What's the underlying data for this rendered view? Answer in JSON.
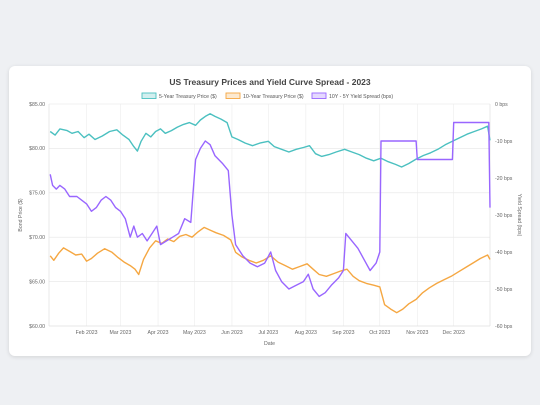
{
  "chart_data": {
    "type": "line",
    "title": "US Treasury Prices and Yield Curve Spread - 2023",
    "xlabel": "Date",
    "ylabel_left": "Bond Price ($)",
    "ylabel_right": "Yield Spread (bps)",
    "x_ticks": [
      "Feb 2023",
      "Mar 2023",
      "Apr 2023",
      "May 2023",
      "Jun 2023",
      "Jul 2023",
      "Aug 2023",
      "Sep 2023",
      "Oct 2023",
      "Nov 2023",
      "Dec 2023"
    ],
    "y_left": {
      "min": 60,
      "max": 85,
      "ticks": [
        "$60.00",
        "$65.00",
        "$70.00",
        "$75.00",
        "$80.00",
        "$85.00"
      ]
    },
    "y_right": {
      "min": -60,
      "max": 0,
      "ticks": [
        "-60 bps",
        "-50 bps",
        "-40 bps",
        "-30 bps",
        "-20 bps",
        "-10 bps",
        "0 bps"
      ]
    },
    "legend_position": "top",
    "grid": true,
    "series": [
      {
        "name": "5-Year Treasury Price ($)",
        "axis": "left",
        "color": "#4bc0c0",
        "points": [
          [
            "2023-01-02",
            81.9
          ],
          [
            "2023-01-06",
            81.5
          ],
          [
            "2023-01-10",
            82.2
          ],
          [
            "2023-01-16",
            82.0
          ],
          [
            "2023-01-20",
            81.7
          ],
          [
            "2023-01-25",
            81.9
          ],
          [
            "2023-01-30",
            81.2
          ],
          [
            "2023-02-03",
            81.6
          ],
          [
            "2023-02-08",
            81.0
          ],
          [
            "2023-02-14",
            81.4
          ],
          [
            "2023-02-20",
            81.9
          ],
          [
            "2023-02-26",
            82.1
          ],
          [
            "2023-03-03",
            81.5
          ],
          [
            "2023-03-08",
            81.0
          ],
          [
            "2023-03-12",
            80.2
          ],
          [
            "2023-03-15",
            79.7
          ],
          [
            "2023-03-18",
            80.8
          ],
          [
            "2023-03-22",
            81.7
          ],
          [
            "2023-03-26",
            81.3
          ],
          [
            "2023-03-30",
            81.9
          ],
          [
            "2023-04-03",
            82.2
          ],
          [
            "2023-04-07",
            81.7
          ],
          [
            "2023-04-12",
            82.0
          ],
          [
            "2023-04-17",
            82.4
          ],
          [
            "2023-04-22",
            82.7
          ],
          [
            "2023-04-27",
            82.9
          ],
          [
            "2023-05-02",
            82.6
          ],
          [
            "2023-05-06",
            83.2
          ],
          [
            "2023-05-10",
            83.6
          ],
          [
            "2023-05-14",
            83.9
          ],
          [
            "2023-05-18",
            83.6
          ],
          [
            "2023-05-23",
            83.3
          ],
          [
            "2023-05-28",
            82.9
          ],
          [
            "2023-06-01",
            81.3
          ],
          [
            "2023-06-06",
            81.0
          ],
          [
            "2023-06-12",
            80.6
          ],
          [
            "2023-06-18",
            80.3
          ],
          [
            "2023-06-24",
            80.6
          ],
          [
            "2023-07-01",
            80.8
          ],
          [
            "2023-07-06",
            80.2
          ],
          [
            "2023-07-12",
            79.9
          ],
          [
            "2023-07-18",
            79.6
          ],
          [
            "2023-07-24",
            79.9
          ],
          [
            "2023-07-30",
            80.1
          ],
          [
            "2023-08-04",
            80.3
          ],
          [
            "2023-08-09",
            79.4
          ],
          [
            "2023-08-14",
            79.1
          ],
          [
            "2023-08-20",
            79.3
          ],
          [
            "2023-08-26",
            79.6
          ],
          [
            "2023-09-02",
            79.9
          ],
          [
            "2023-09-08",
            79.6
          ],
          [
            "2023-09-14",
            79.3
          ],
          [
            "2023-09-20",
            78.9
          ],
          [
            "2023-09-26",
            78.6
          ],
          [
            "2023-10-02",
            78.9
          ],
          [
            "2023-10-08",
            78.5
          ],
          [
            "2023-10-14",
            78.2
          ],
          [
            "2023-10-19",
            77.9
          ],
          [
            "2023-10-25",
            78.3
          ],
          [
            "2023-10-31",
            78.8
          ],
          [
            "2023-11-06",
            79.2
          ],
          [
            "2023-11-12",
            79.5
          ],
          [
            "2023-11-18",
            79.9
          ],
          [
            "2023-11-24",
            80.4
          ],
          [
            "2023-11-30",
            80.8
          ],
          [
            "2023-12-06",
            81.2
          ],
          [
            "2023-12-12",
            81.6
          ],
          [
            "2023-12-18",
            81.9
          ],
          [
            "2023-12-24",
            82.2
          ],
          [
            "2023-12-29",
            82.5
          ],
          [
            "2023-12-31",
            80.9
          ]
        ]
      },
      {
        "name": "10-Year Treasury Price ($)",
        "axis": "left",
        "color": "#f5a742",
        "points": [
          [
            "2023-01-02",
            67.9
          ],
          [
            "2023-01-05",
            67.4
          ],
          [
            "2023-01-09",
            68.2
          ],
          [
            "2023-01-13",
            68.8
          ],
          [
            "2023-01-18",
            68.4
          ],
          [
            "2023-01-23",
            68.0
          ],
          [
            "2023-01-28",
            68.1
          ],
          [
            "2023-02-01",
            67.3
          ],
          [
            "2023-02-05",
            67.6
          ],
          [
            "2023-02-10",
            68.2
          ],
          [
            "2023-02-16",
            68.7
          ],
          [
            "2023-02-22",
            68.3
          ],
          [
            "2023-02-27",
            67.7
          ],
          [
            "2023-03-04",
            67.2
          ],
          [
            "2023-03-09",
            66.8
          ],
          [
            "2023-03-13",
            66.4
          ],
          [
            "2023-03-16",
            65.8
          ],
          [
            "2023-03-20",
            67.5
          ],
          [
            "2023-03-25",
            68.8
          ],
          [
            "2023-03-30",
            69.6
          ],
          [
            "2023-04-04",
            69.3
          ],
          [
            "2023-04-09",
            69.8
          ],
          [
            "2023-04-14",
            69.5
          ],
          [
            "2023-04-19",
            70.1
          ],
          [
            "2023-04-24",
            70.3
          ],
          [
            "2023-04-29",
            70.0
          ],
          [
            "2023-05-04",
            70.6
          ],
          [
            "2023-05-09",
            71.1
          ],
          [
            "2023-05-14",
            70.8
          ],
          [
            "2023-05-19",
            70.5
          ],
          [
            "2023-05-25",
            70.2
          ],
          [
            "2023-05-31",
            69.7
          ],
          [
            "2023-06-04",
            68.3
          ],
          [
            "2023-06-09",
            67.8
          ],
          [
            "2023-06-15",
            67.4
          ],
          [
            "2023-06-21",
            67.1
          ],
          [
            "2023-06-27",
            67.4
          ],
          [
            "2023-07-03",
            67.9
          ],
          [
            "2023-07-09",
            67.2
          ],
          [
            "2023-07-15",
            66.8
          ],
          [
            "2023-07-21",
            66.4
          ],
          [
            "2023-07-27",
            66.7
          ],
          [
            "2023-08-02",
            67.0
          ],
          [
            "2023-08-07",
            66.4
          ],
          [
            "2023-08-12",
            65.8
          ],
          [
            "2023-08-18",
            65.6
          ],
          [
            "2023-08-24",
            65.9
          ],
          [
            "2023-08-30",
            66.2
          ],
          [
            "2023-09-04",
            66.4
          ],
          [
            "2023-09-09",
            65.6
          ],
          [
            "2023-09-14",
            65.1
          ],
          [
            "2023-09-20",
            64.8
          ],
          [
            "2023-09-26",
            64.6
          ],
          [
            "2023-10-01",
            64.4
          ],
          [
            "2023-10-05",
            62.4
          ],
          [
            "2023-10-10",
            61.9
          ],
          [
            "2023-10-15",
            61.5
          ],
          [
            "2023-10-20",
            61.9
          ],
          [
            "2023-10-25",
            62.5
          ],
          [
            "2023-10-31",
            63.0
          ],
          [
            "2023-11-05",
            63.7
          ],
          [
            "2023-11-11",
            64.3
          ],
          [
            "2023-11-17",
            64.8
          ],
          [
            "2023-11-23",
            65.2
          ],
          [
            "2023-11-29",
            65.6
          ],
          [
            "2023-12-05",
            66.1
          ],
          [
            "2023-12-11",
            66.6
          ],
          [
            "2023-12-17",
            67.1
          ],
          [
            "2023-12-23",
            67.6
          ],
          [
            "2023-12-29",
            68.0
          ],
          [
            "2023-12-31",
            67.5
          ]
        ]
      },
      {
        "name": "10Y - 5Y Yield Spread (bps)",
        "axis": "right",
        "color": "#9966ff",
        "points": [
          [
            "2023-01-02",
            -19
          ],
          [
            "2023-01-04",
            -22
          ],
          [
            "2023-01-07",
            -23
          ],
          [
            "2023-01-10",
            -22
          ],
          [
            "2023-01-14",
            -23
          ],
          [
            "2023-01-18",
            -25
          ],
          [
            "2023-01-24",
            -25
          ],
          [
            "2023-01-28",
            -26
          ],
          [
            "2023-02-01",
            -27
          ],
          [
            "2023-02-05",
            -29
          ],
          [
            "2023-02-09",
            -28
          ],
          [
            "2023-02-13",
            -26
          ],
          [
            "2023-02-17",
            -25
          ],
          [
            "2023-02-21",
            -26
          ],
          [
            "2023-02-25",
            -28
          ],
          [
            "2023-03-01",
            -29
          ],
          [
            "2023-03-05",
            -31
          ],
          [
            "2023-03-09",
            -36
          ],
          [
            "2023-03-12",
            -33
          ],
          [
            "2023-03-15",
            -36
          ],
          [
            "2023-03-19",
            -35
          ],
          [
            "2023-03-23",
            -37
          ],
          [
            "2023-03-27",
            -35
          ],
          [
            "2023-03-31",
            -33
          ],
          [
            "2023-04-03",
            -38
          ],
          [
            "2023-04-08",
            -37
          ],
          [
            "2023-04-13",
            -36
          ],
          [
            "2023-04-18",
            -35
          ],
          [
            "2023-04-23",
            -31
          ],
          [
            "2023-04-28",
            -32
          ],
          [
            "2023-05-02",
            -15
          ],
          [
            "2023-05-06",
            -12
          ],
          [
            "2023-05-10",
            -10
          ],
          [
            "2023-05-14",
            -11
          ],
          [
            "2023-05-18",
            -14
          ],
          [
            "2023-05-24",
            -16
          ],
          [
            "2023-05-29",
            -18
          ],
          [
            "2023-06-01",
            -30
          ],
          [
            "2023-06-04",
            -38
          ],
          [
            "2023-06-10",
            -41
          ],
          [
            "2023-06-16",
            -43
          ],
          [
            "2023-06-22",
            -44
          ],
          [
            "2023-06-28",
            -43
          ],
          [
            "2023-07-03",
            -40
          ],
          [
            "2023-07-07",
            -45
          ],
          [
            "2023-07-12",
            -48
          ],
          [
            "2023-07-18",
            -50
          ],
          [
            "2023-07-24",
            -49
          ],
          [
            "2023-07-30",
            -48
          ],
          [
            "2023-08-03",
            -46
          ],
          [
            "2023-08-07",
            -50
          ],
          [
            "2023-08-12",
            -52
          ],
          [
            "2023-08-17",
            -51
          ],
          [
            "2023-08-22",
            -49
          ],
          [
            "2023-08-28",
            -47
          ],
          [
            "2023-09-01",
            -45
          ],
          [
            "2023-09-03",
            -35
          ],
          [
            "2023-09-08",
            -37
          ],
          [
            "2023-09-13",
            -39
          ],
          [
            "2023-09-18",
            -42
          ],
          [
            "2023-09-23",
            -45
          ],
          [
            "2023-09-28",
            -43
          ],
          [
            "2023-10-01",
            -40
          ],
          [
            "2023-10-02",
            -10
          ],
          [
            "2023-10-12",
            -10
          ],
          [
            "2023-10-22",
            -10
          ],
          [
            "2023-10-31",
            -10
          ],
          [
            "2023-11-01",
            -15
          ],
          [
            "2023-11-15",
            -15
          ],
          [
            "2023-11-30",
            -15
          ],
          [
            "2023-12-01",
            -5
          ],
          [
            "2023-12-15",
            -5
          ],
          [
            "2023-12-30",
            -5
          ],
          [
            "2023-12-31",
            -28
          ]
        ]
      }
    ]
  }
}
